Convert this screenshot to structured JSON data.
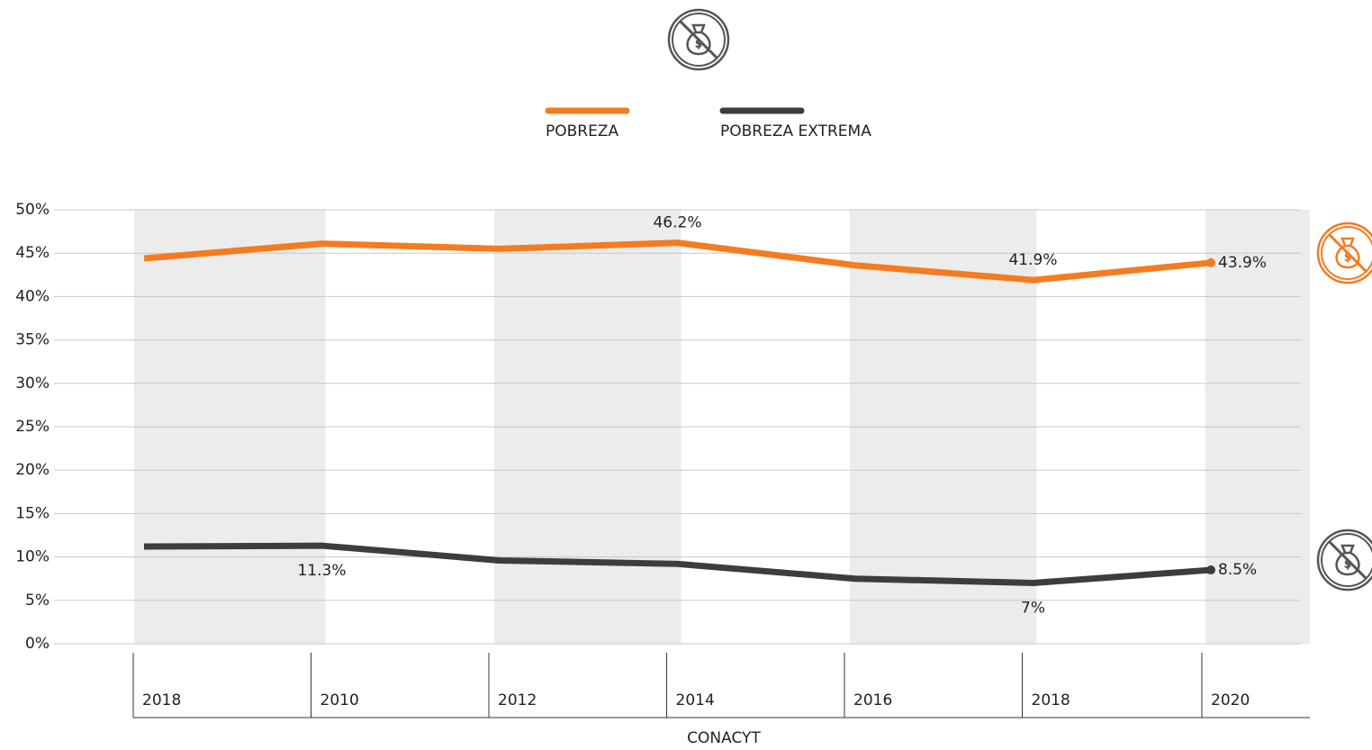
{
  "chart_data": {
    "type": "line",
    "categories": [
      "2018",
      "2010",
      "2012",
      "2014",
      "2016",
      "2018",
      "2020"
    ],
    "series": [
      {
        "name": "POBREZA",
        "color": "#f47b20",
        "values": [
          44.4,
          46.1,
          45.5,
          46.2,
          43.6,
          41.9,
          43.9
        ],
        "value_labels": [
          null,
          null,
          null,
          "46.2%",
          null,
          "41.9%",
          "43.9%"
        ]
      },
      {
        "name": "POBREZA EXTREMA",
        "color": "#3d3d3d",
        "values": [
          11.2,
          11.3,
          9.6,
          9.2,
          7.5,
          7.0,
          8.5
        ],
        "value_labels": [
          null,
          "11.3%",
          null,
          null,
          null,
          "7%",
          "8.5%"
        ]
      }
    ],
    "ylim": [
      0,
      50
    ],
    "yticks": [
      {
        "value": 0,
        "label": "0%"
      },
      {
        "value": 5,
        "label": "5%"
      },
      {
        "value": 10,
        "label": "10%"
      },
      {
        "value": 15,
        "label": "15%"
      },
      {
        "value": 20,
        "label": "20%"
      },
      {
        "value": 25,
        "label": "25%"
      },
      {
        "value": 30,
        "label": "30%"
      },
      {
        "value": 35,
        "label": "35%"
      },
      {
        "value": 40,
        "label": "40%"
      },
      {
        "value": 45,
        "label": "45%"
      },
      {
        "value": 50,
        "label": "50%"
      }
    ],
    "grid": true,
    "legend": "top",
    "x_label": "CONACYT"
  }
}
